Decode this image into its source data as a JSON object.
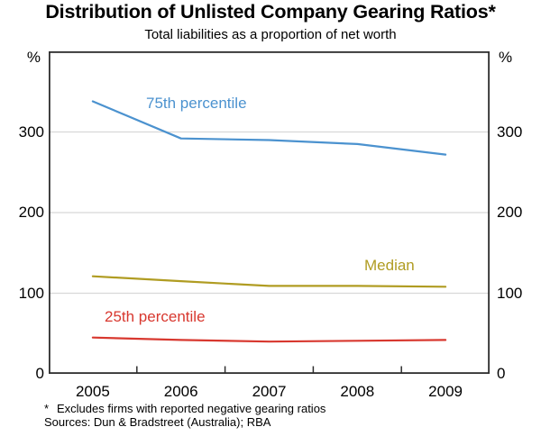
{
  "chart_data": {
    "type": "line",
    "title": "Distribution of Unlisted Company Gearing Ratios*",
    "subtitle": "Total liabilities as a proportion of net worth",
    "ylabel_unit": "%",
    "categories": [
      "2005",
      "2006",
      "2007",
      "2008",
      "2009"
    ],
    "series": [
      {
        "name": "75th percentile",
        "color": "#4b92cf",
        "values": [
          338,
          292,
          290,
          285,
          272
        ]
      },
      {
        "name": "Median",
        "color": "#b09c22",
        "values": [
          121,
          115,
          109,
          109,
          108
        ]
      },
      {
        "name": "25th percentile",
        "color": "#d8382f",
        "values": [
          45,
          42,
          40,
          41,
          42
        ]
      }
    ],
    "ylim": [
      0,
      400
    ],
    "yticks": [
      0,
      100,
      200,
      300
    ],
    "grid": true,
    "legend": "inline-labels",
    "frame_color": "#2e2e2e",
    "grid_color": "#d8d8d8"
  },
  "footnotes": {
    "marker": "*",
    "note": "Excludes firms with reported negative gearing ratios",
    "sources": "Sources: Dun & Bradstreet (Australia); RBA"
  }
}
